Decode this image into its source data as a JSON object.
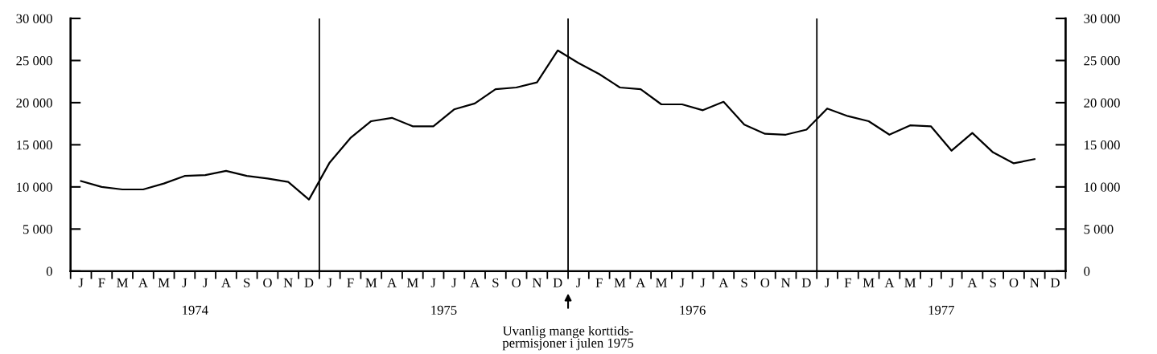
{
  "chart_data": {
    "type": "line",
    "categories": [
      "J",
      "F",
      "M",
      "A",
      "M",
      "J",
      "J",
      "A",
      "S",
      "O",
      "N",
      "D",
      "J",
      "F",
      "M",
      "A",
      "M",
      "J",
      "J",
      "A",
      "S",
      "O",
      "N",
      "D",
      "J",
      "F",
      "M",
      "A",
      "M",
      "J",
      "J",
      "A",
      "S",
      "O",
      "N",
      "D",
      "J",
      "F",
      "M",
      "A",
      "M",
      "J",
      "J",
      "A",
      "S",
      "O",
      "N",
      "D"
    ],
    "series": [
      {
        "color": "#000000",
        "values": [
          10700,
          10000,
          9700,
          9700,
          10400,
          11300,
          11400,
          11900,
          11300,
          11000,
          10600,
          8500,
          12900,
          15800,
          17800,
          18200,
          17200,
          17200,
          19200,
          19900,
          21600,
          21800,
          22400,
          26200,
          24700,
          23400,
          21800,
          21600,
          19800,
          19800,
          19100,
          20100,
          17400,
          16300,
          16200,
          16800,
          19300,
          18400,
          17800,
          16200,
          17300,
          17200,
          14300,
          16400,
          14100,
          12800,
          13300,
          null
        ]
      }
    ],
    "ylim": [
      0,
      30000
    ],
    "yticks": [
      {
        "value": 0,
        "label": "0"
      },
      {
        "value": 5000,
        "label": "5 000"
      },
      {
        "value": 10000,
        "label": "10 000"
      },
      {
        "value": 15000,
        "label": "15 000"
      },
      {
        "value": 20000,
        "label": "20 000"
      },
      {
        "value": 25000,
        "label": "25 000"
      },
      {
        "value": 30000,
        "label": "30 000"
      }
    ],
    "y2lim": [
      0,
      30000
    ],
    "y2ticks": [
      {
        "value": 0,
        "label": "0"
      },
      {
        "value": 5000,
        "label": "5 000"
      },
      {
        "value": 10000,
        "label": "10 000"
      },
      {
        "value": 15000,
        "label": "15 000"
      },
      {
        "value": 20000,
        "label": "20 000"
      },
      {
        "value": 25000,
        "label": "25 000"
      },
      {
        "value": 30000,
        "label": "30 000"
      }
    ],
    "annotations": [
      "1974",
      "1975",
      "1976",
      "1977",
      "Uvanlig mange korttids-\npermisjoner i julen 1975"
    ],
    "grid": false,
    "legend": false,
    "marker": "none",
    "line_style": "solid"
  }
}
